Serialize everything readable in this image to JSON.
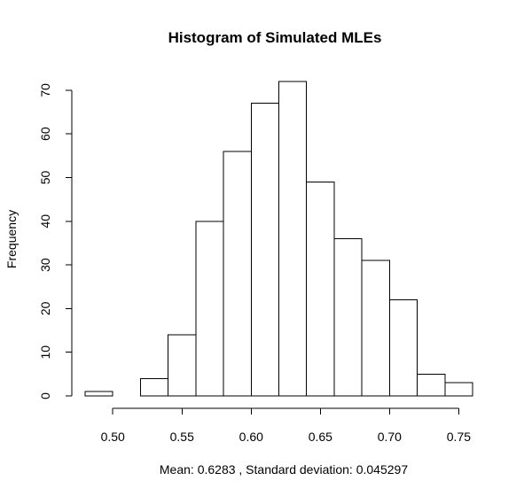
{
  "chart_data": {
    "type": "bar",
    "title": "Histogram of Simulated MLEs",
    "xlabel": "Mean:  0.6283 , Standard deviation:  0.045297",
    "ylabel": "Frequency",
    "bin_edges": [
      0.48,
      0.5,
      0.52,
      0.54,
      0.56,
      0.58,
      0.6,
      0.62,
      0.64,
      0.66,
      0.68,
      0.7,
      0.72,
      0.74,
      0.76
    ],
    "values": [
      1,
      0,
      4,
      14,
      40,
      56,
      67,
      72,
      49,
      36,
      31,
      22,
      5,
      3
    ],
    "xlim": [
      0.48,
      0.76
    ],
    "ylim": [
      0,
      72
    ],
    "x_ticks": [
      0.5,
      0.55,
      0.6,
      0.65,
      0.7,
      0.75
    ],
    "x_tick_labels": [
      "0.50",
      "0.55",
      "0.60",
      "0.65",
      "0.70",
      "0.75"
    ],
    "y_ticks": [
      0,
      10,
      20,
      30,
      40,
      50,
      60,
      70
    ],
    "y_tick_labels": [
      "0",
      "10",
      "20",
      "30",
      "40",
      "50",
      "60",
      "70"
    ],
    "grid": false,
    "bar_fill": "#ffffff",
    "bar_stroke": "#000000"
  }
}
